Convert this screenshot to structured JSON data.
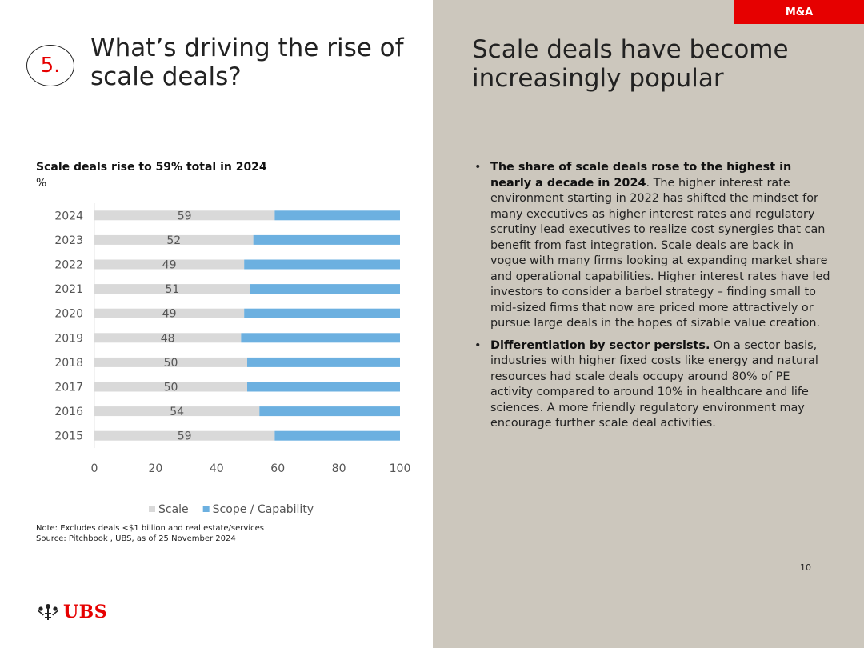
{
  "tag": "M&A",
  "section_number": "5.",
  "left_title": "What’s driving the rise of scale deals?",
  "right_title": "Scale deals have become increasingly popular",
  "chart_data": {
    "type": "bar",
    "orientation": "horizontal",
    "stacked": true,
    "title": "Scale deals rise to 59% total in 2024",
    "unit": "%",
    "categories": [
      "2024",
      "2023",
      "2022",
      "2021",
      "2020",
      "2019",
      "2018",
      "2017",
      "2016",
      "2015"
    ],
    "series": [
      {
        "name": "Scale",
        "values": [
          59,
          52,
          49,
          51,
          49,
          48,
          50,
          50,
          54,
          59
        ],
        "color": "#d9d9d9"
      },
      {
        "name": "Scope / Capability",
        "values": [
          41,
          48,
          51,
          49,
          51,
          52,
          50,
          50,
          46,
          41
        ],
        "color": "#6cb0e0"
      }
    ],
    "xlim": [
      0,
      100
    ],
    "xticks": [
      0,
      20,
      40,
      60,
      80,
      100
    ],
    "data_labels": "Scale values",
    "legend": "bottom",
    "grid": false
  },
  "notes": [
    "Note: Excludes deals <$1 billion and real estate/services",
    "Source: Pitchbook , UBS, as of 25 November 2024"
  ],
  "logo_text": "UBS",
  "bullets": [
    {
      "bold": "The share of scale deals rose to the highest in nearly a decade in 2024",
      "text": ". The higher interest rate environment starting in 2022 has shifted the mindset for many executives as higher interest rates and regulatory scrutiny lead executives to realize cost synergies that can benefit from fast integration. Scale deals are back in vogue with many firms looking at expanding market share and operational capabilities. Higher interest rates have led investors to consider a barbel strategy – finding small to mid-sized firms that now are priced more attractively or pursue large deals in the hopes of sizable value creation."
    },
    {
      "bold": "Differentiation by sector persists.",
      "text": "  On a sector basis, industries with higher fixed costs like energy and natural resources had scale deals occupy around 80% of PE activity compared to around 10% in healthcare and life sciences. A more friendly regulatory environment may encourage further scale deal activities."
    }
  ],
  "page_number": "10",
  "colors": {
    "accent": "#e60000",
    "right_panel": "#ccc7bd"
  }
}
